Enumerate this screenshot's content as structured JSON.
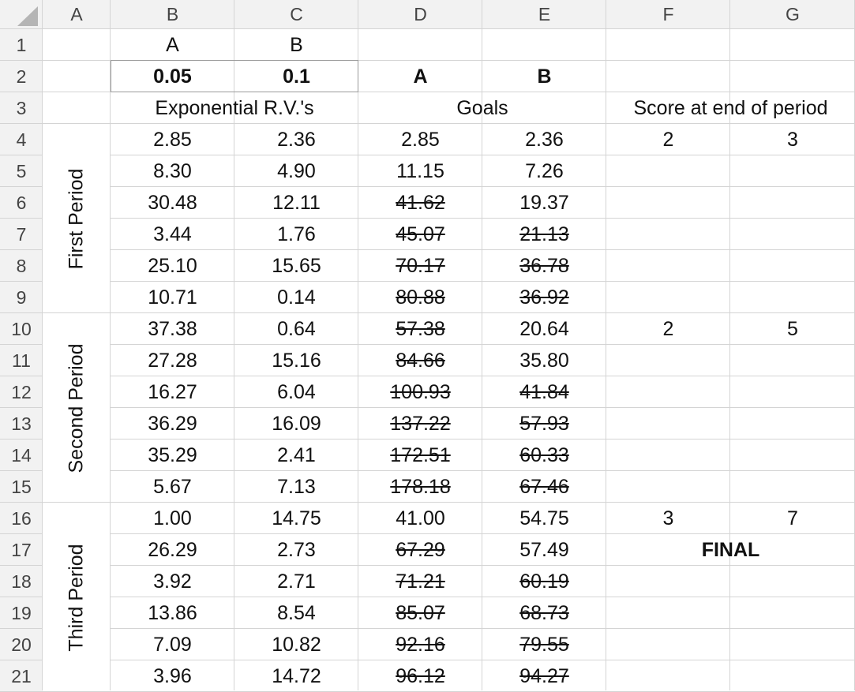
{
  "columns": [
    "A",
    "B",
    "C",
    "D",
    "E",
    "F",
    "G"
  ],
  "rows": [
    "1",
    "2",
    "3",
    "4",
    "5",
    "6",
    "7",
    "8",
    "9",
    "10",
    "11",
    "12",
    "13",
    "14",
    "15",
    "16",
    "17",
    "18",
    "19",
    "20",
    "21"
  ],
  "row1": {
    "b": "A",
    "c": "B"
  },
  "row2": {
    "b": "0.05",
    "c": "0.1",
    "d": "A",
    "e": "B"
  },
  "row3": {
    "exp": "Exponential R.V.'s",
    "goals": "Goals",
    "score": "Score at end of period"
  },
  "periods": [
    "First Period",
    "Second Period",
    "Third Period"
  ],
  "final_label": "FINAL",
  "data": [
    {
      "b": "2.85",
      "c": "2.36",
      "d": "2.85",
      "e": "2.36",
      "f": "2",
      "g": "3",
      "ds": false,
      "es": false
    },
    {
      "b": "8.30",
      "c": "4.90",
      "d": "11.15",
      "e": "7.26",
      "f": "",
      "g": "",
      "ds": false,
      "es": false
    },
    {
      "b": "30.48",
      "c": "12.11",
      "d": "41.62",
      "e": "19.37",
      "f": "",
      "g": "",
      "ds": true,
      "es": false
    },
    {
      "b": "3.44",
      "c": "1.76",
      "d": "45.07",
      "e": "21.13",
      "f": "",
      "g": "",
      "ds": true,
      "es": true
    },
    {
      "b": "25.10",
      "c": "15.65",
      "d": "70.17",
      "e": "36.78",
      "f": "",
      "g": "",
      "ds": true,
      "es": true
    },
    {
      "b": "10.71",
      "c": "0.14",
      "d": "80.88",
      "e": "36.92",
      "f": "",
      "g": "",
      "ds": true,
      "es": true
    },
    {
      "b": "37.38",
      "c": "0.64",
      "d": "57.38",
      "e": "20.64",
      "f": "2",
      "g": "5",
      "ds": true,
      "es": false
    },
    {
      "b": "27.28",
      "c": "15.16",
      "d": "84.66",
      "e": "35.80",
      "f": "",
      "g": "",
      "ds": true,
      "es": false
    },
    {
      "b": "16.27",
      "c": "6.04",
      "d": "100.93",
      "e": "41.84",
      "f": "",
      "g": "",
      "ds": true,
      "es": true
    },
    {
      "b": "36.29",
      "c": "16.09",
      "d": "137.22",
      "e": "57.93",
      "f": "",
      "g": "",
      "ds": true,
      "es": true
    },
    {
      "b": "35.29",
      "c": "2.41",
      "d": "172.51",
      "e": "60.33",
      "f": "",
      "g": "",
      "ds": true,
      "es": true
    },
    {
      "b": "5.67",
      "c": "7.13",
      "d": "178.18",
      "e": "67.46",
      "f": "",
      "g": "",
      "ds": true,
      "es": true
    },
    {
      "b": "1.00",
      "c": "14.75",
      "d": "41.00",
      "e": "54.75",
      "f": "3",
      "g": "7",
      "ds": false,
      "es": false
    },
    {
      "b": "26.29",
      "c": "2.73",
      "d": "67.29",
      "e": "57.49",
      "f": "",
      "g": "",
      "ds": true,
      "es": false
    },
    {
      "b": "3.92",
      "c": "2.71",
      "d": "71.21",
      "e": "60.19",
      "f": "",
      "g": "",
      "ds": true,
      "es": true
    },
    {
      "b": "13.86",
      "c": "8.54",
      "d": "85.07",
      "e": "68.73",
      "f": "",
      "g": "",
      "ds": true,
      "es": true
    },
    {
      "b": "7.09",
      "c": "10.82",
      "d": "92.16",
      "e": "79.55",
      "f": "",
      "g": "",
      "ds": true,
      "es": true
    },
    {
      "b": "3.96",
      "c": "14.72",
      "d": "96.12",
      "e": "94.27",
      "f": "",
      "g": "",
      "ds": true,
      "es": true
    }
  ]
}
